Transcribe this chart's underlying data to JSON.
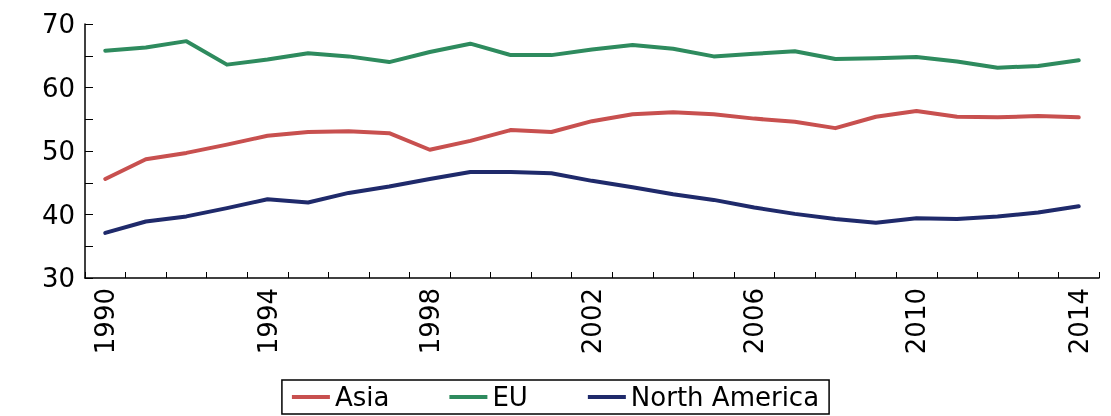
{
  "chart_data": {
    "type": "line",
    "categories": [
      "1990",
      null,
      null,
      null,
      "1994",
      null,
      null,
      null,
      "1998",
      null,
      null,
      null,
      "2002",
      null,
      null,
      null,
      "2006",
      null,
      null,
      null,
      "2010",
      null,
      null,
      null,
      "2014"
    ],
    "series": [
      {
        "name": "Asia",
        "color": "#c8504f",
        "values": [
          45.6,
          48.7,
          49.7,
          51.0,
          52.4,
          53.0,
          53.1,
          52.8,
          50.2,
          51.6,
          53.3,
          53.0,
          54.7,
          55.8,
          56.1,
          55.8,
          55.1,
          54.6,
          53.6,
          55.4,
          56.3,
          55.4,
          55.3,
          55.5,
          55.3
        ]
      },
      {
        "name": "EU",
        "color": "#2e8b5e",
        "values": [
          65.8,
          66.3,
          67.3,
          63.6,
          64.4,
          65.4,
          64.9,
          64.0,
          65.6,
          66.9,
          65.1,
          65.1,
          66.0,
          66.7,
          66.1,
          64.9,
          65.3,
          65.7,
          64.5,
          64.6,
          64.8,
          64.1,
          63.1,
          63.4,
          64.3
        ]
      },
      {
        "name": "North America",
        "color": "#1f2a6b",
        "values": [
          37.1,
          38.9,
          39.7,
          41.0,
          42.4,
          41.9,
          43.4,
          44.4,
          45.6,
          46.7,
          46.7,
          46.5,
          45.3,
          44.3,
          43.2,
          42.3,
          41.1,
          40.1,
          39.3,
          38.7,
          39.4,
          39.3,
          39.7,
          40.3,
          41.3
        ]
      }
    ],
    "ylim": [
      30,
      70
    ],
    "yticks": [
      30,
      {
        "value": 35,
        "label": null
      },
      40,
      {
        "value": 45,
        "label": null
      },
      50,
      {
        "value": 55,
        "label": null
      },
      60,
      {
        "value": 65,
        "label": null
      },
      70
    ],
    "grid": false,
    "legend": "bottom",
    "marker": "none",
    "line_style": "solid"
  }
}
